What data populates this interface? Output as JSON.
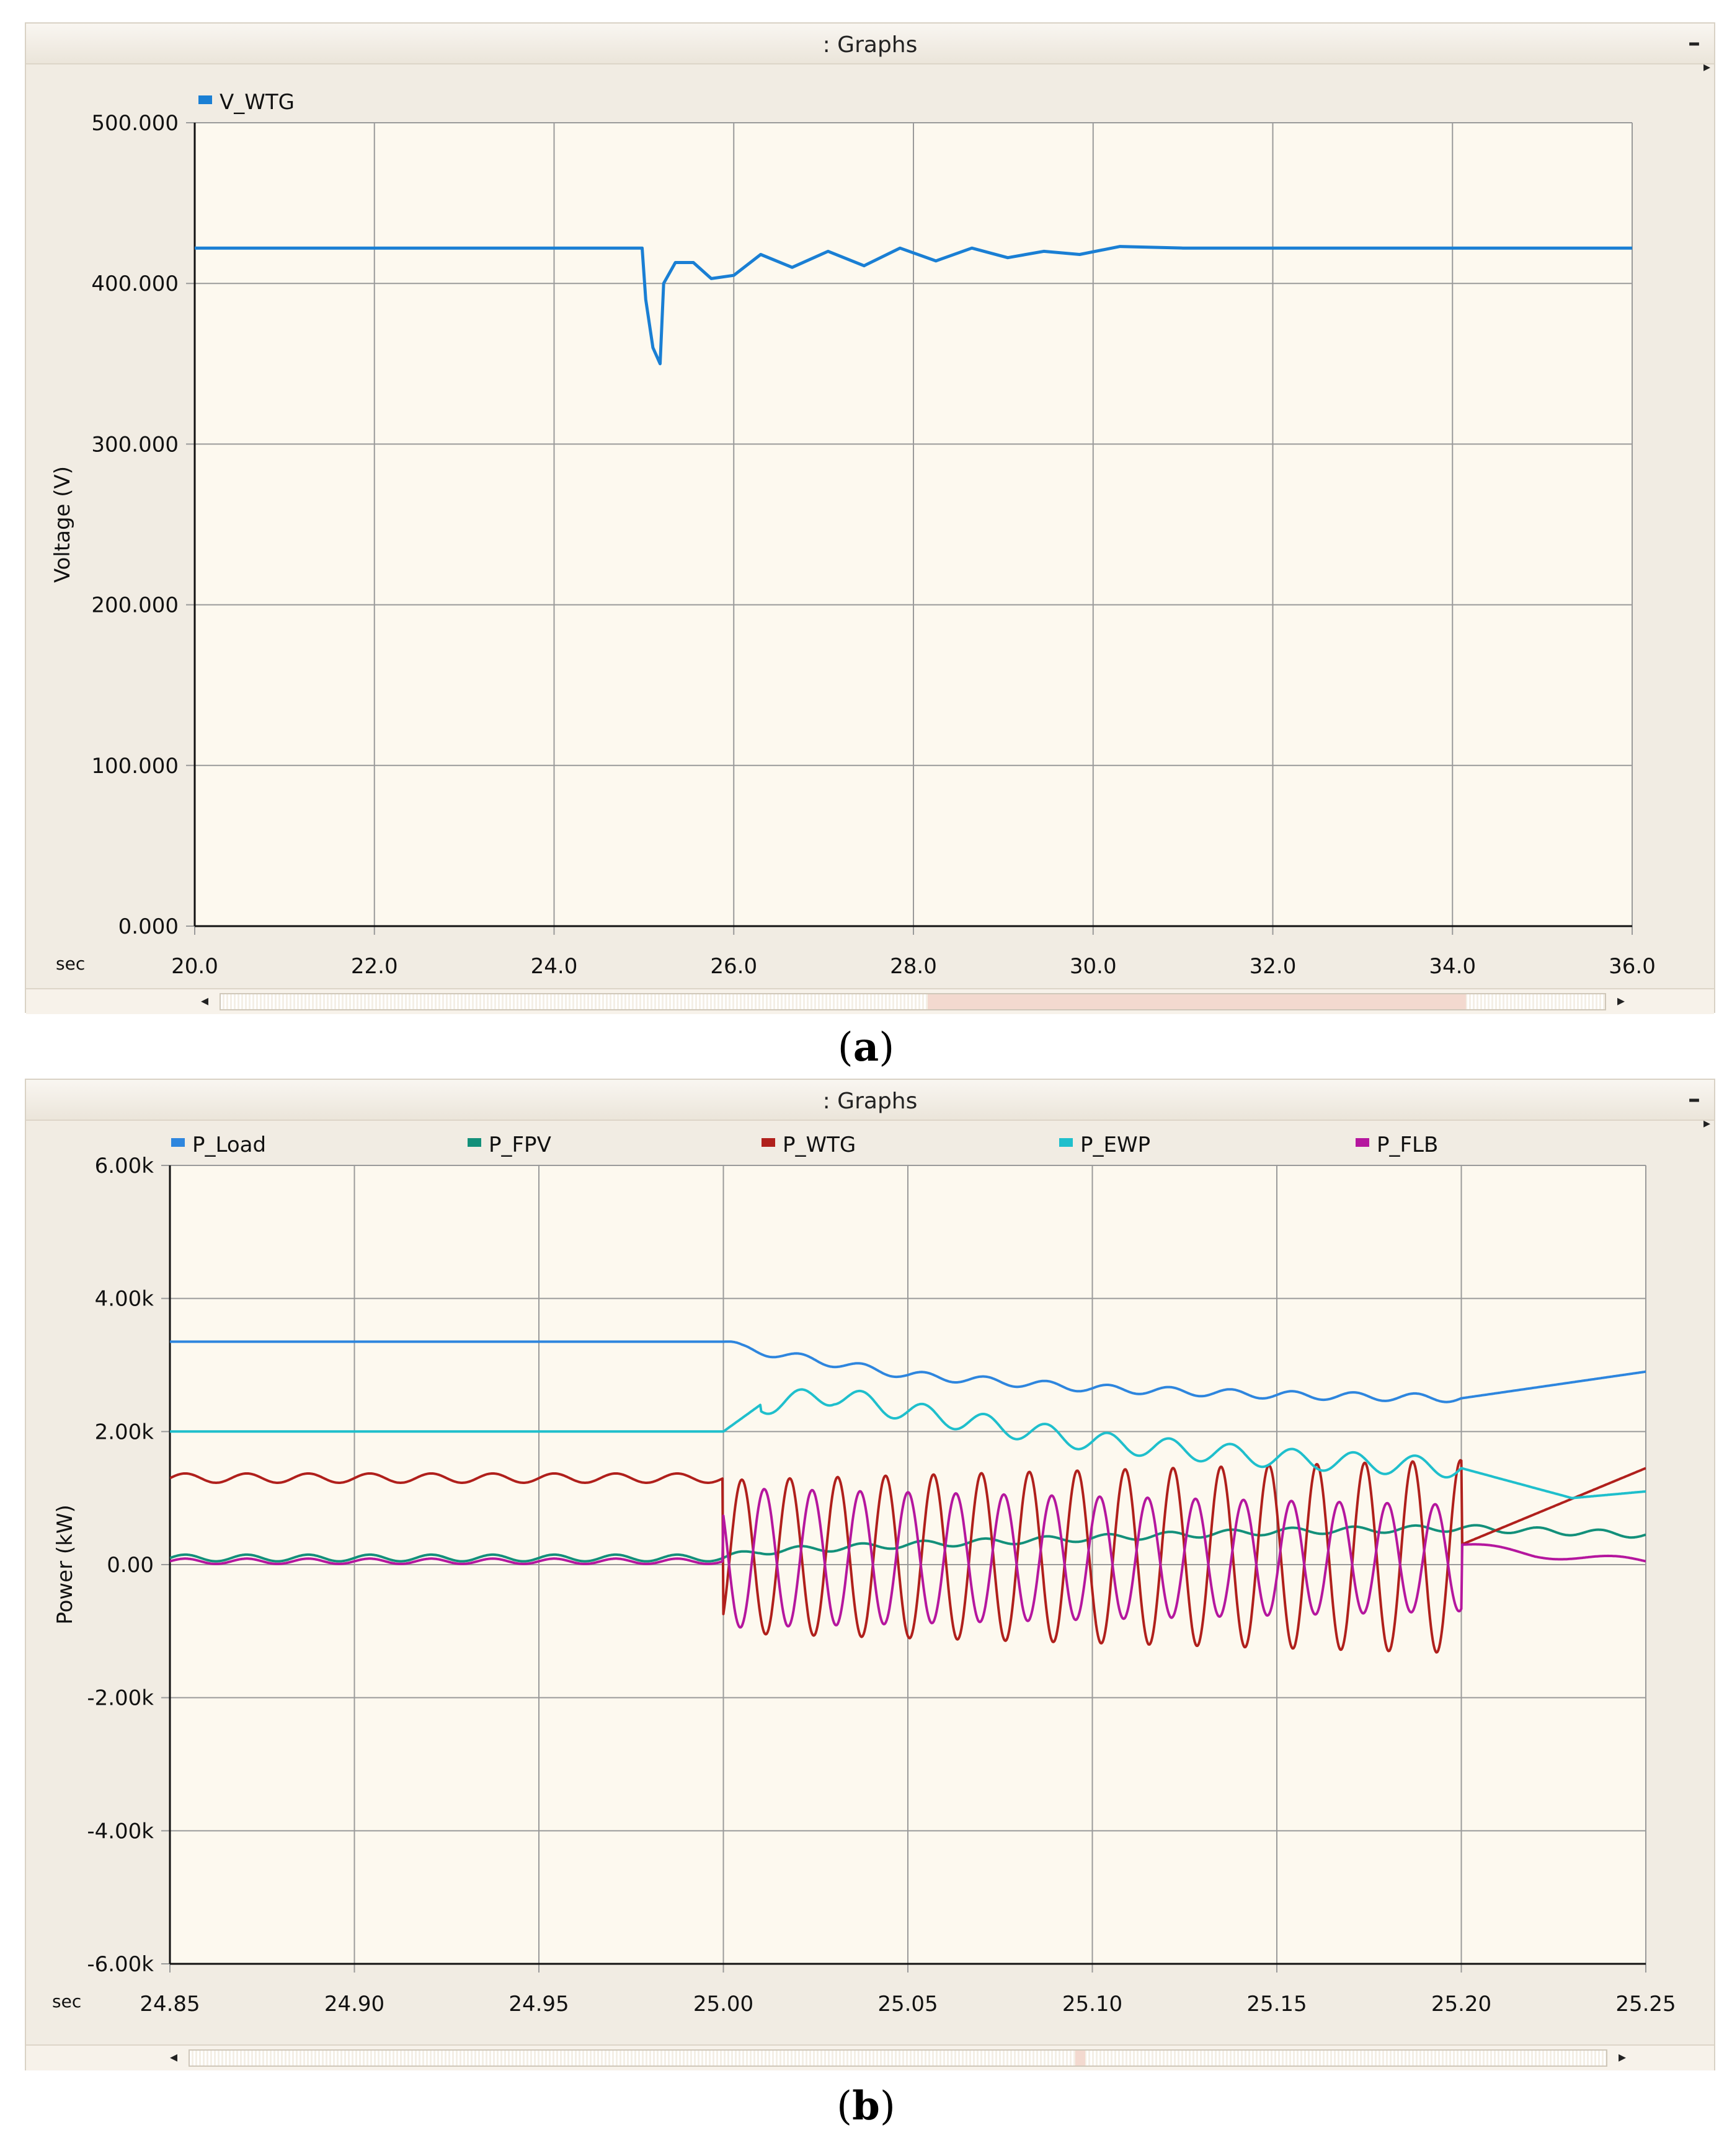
{
  "chart_data": [
    {
      "type": "line",
      "panel_title": ": Graphs",
      "caption_letter": "a",
      "xlabel": "sec",
      "ylabel": "Voltage (V)",
      "xlim": [
        20.0,
        36.0
      ],
      "ylim": [
        0.0,
        500.0
      ],
      "x_ticks": [
        "20.0",
        "22.0",
        "24.0",
        "26.0",
        "28.0",
        "30.0",
        "32.0",
        "34.0",
        "36.0"
      ],
      "y_ticks": [
        "0.000",
        "100.000",
        "200.000",
        "300.000",
        "400.000",
        "500.000"
      ],
      "grid": true,
      "legend_position": "top-left",
      "series": [
        {
          "name": "V_WTG",
          "color": "#1a7fd4",
          "x": [
            20.0,
            24.98,
            25.02,
            25.1,
            25.18,
            25.22,
            25.35,
            25.55,
            25.75,
            26.0,
            26.3,
            26.65,
            27.05,
            27.45,
            27.85,
            28.25,
            28.65,
            29.05,
            29.45,
            29.85,
            30.3,
            31.0,
            36.0
          ],
          "y": [
            422,
            422,
            390,
            360,
            350,
            400,
            413,
            413,
            403,
            405,
            418,
            410,
            420,
            411,
            422,
            414,
            422,
            416,
            420,
            418,
            423,
            422,
            422
          ]
        }
      ]
    },
    {
      "type": "line",
      "panel_title": ": Graphs",
      "caption_letter": "b",
      "xlabel": "sec",
      "ylabel": "Power (kW)",
      "xlim": [
        24.85,
        25.25
      ],
      "ylim": [
        -6.0,
        6.0
      ],
      "x_ticks": [
        "24.85",
        "24.90",
        "24.95",
        "25.00",
        "25.05",
        "25.10",
        "25.15",
        "25.20",
        "25.25"
      ],
      "y_ticks": [
        "-6.00k",
        "-4.00k",
        "-2.00k",
        "0.00",
        "2.00k",
        "4.00k",
        "6.00k"
      ],
      "grid": true,
      "legend_position": "top",
      "series": [
        {
          "name": "P_Load",
          "color": "#2e86de",
          "x": [
            24.85,
            25.0,
            25.005,
            25.05,
            25.1,
            25.15,
            25.2,
            25.25
          ],
          "y": [
            3.35,
            3.35,
            3.25,
            2.85,
            2.65,
            2.55,
            2.5,
            2.9
          ]
        },
        {
          "name": "P_FPV",
          "color": "#13907a",
          "x": [
            24.85,
            25.0,
            25.01,
            25.05,
            25.1,
            25.15,
            25.2,
            25.25
          ],
          "y": [
            0.1,
            0.1,
            0.2,
            0.3,
            0.4,
            0.5,
            0.55,
            0.45
          ]
        },
        {
          "name": "P_WTG",
          "color": "#b0201c",
          "x": [
            24.85,
            25.0,
            25.005,
            25.2,
            25.25
          ],
          "y": [
            1.3,
            1.3,
            2.0,
            0.3,
            1.45
          ]
        },
        {
          "name": "P_EWP",
          "color": "#1fbfcc",
          "x": [
            24.85,
            25.0,
            25.01,
            25.03,
            25.05,
            25.1,
            25.15,
            25.2,
            25.23,
            25.25
          ],
          "y": [
            2.0,
            2.0,
            2.4,
            2.55,
            2.3,
            1.85,
            1.6,
            1.45,
            1.0,
            1.1
          ]
        },
        {
          "name": "P_FLB",
          "color": "#b5179e",
          "x": [
            24.85,
            25.0,
            25.005,
            25.2,
            25.22,
            25.25
          ],
          "y": [
            0.05,
            0.05,
            -0.2,
            0.3,
            0.15,
            0.05
          ]
        }
      ]
    }
  ]
}
